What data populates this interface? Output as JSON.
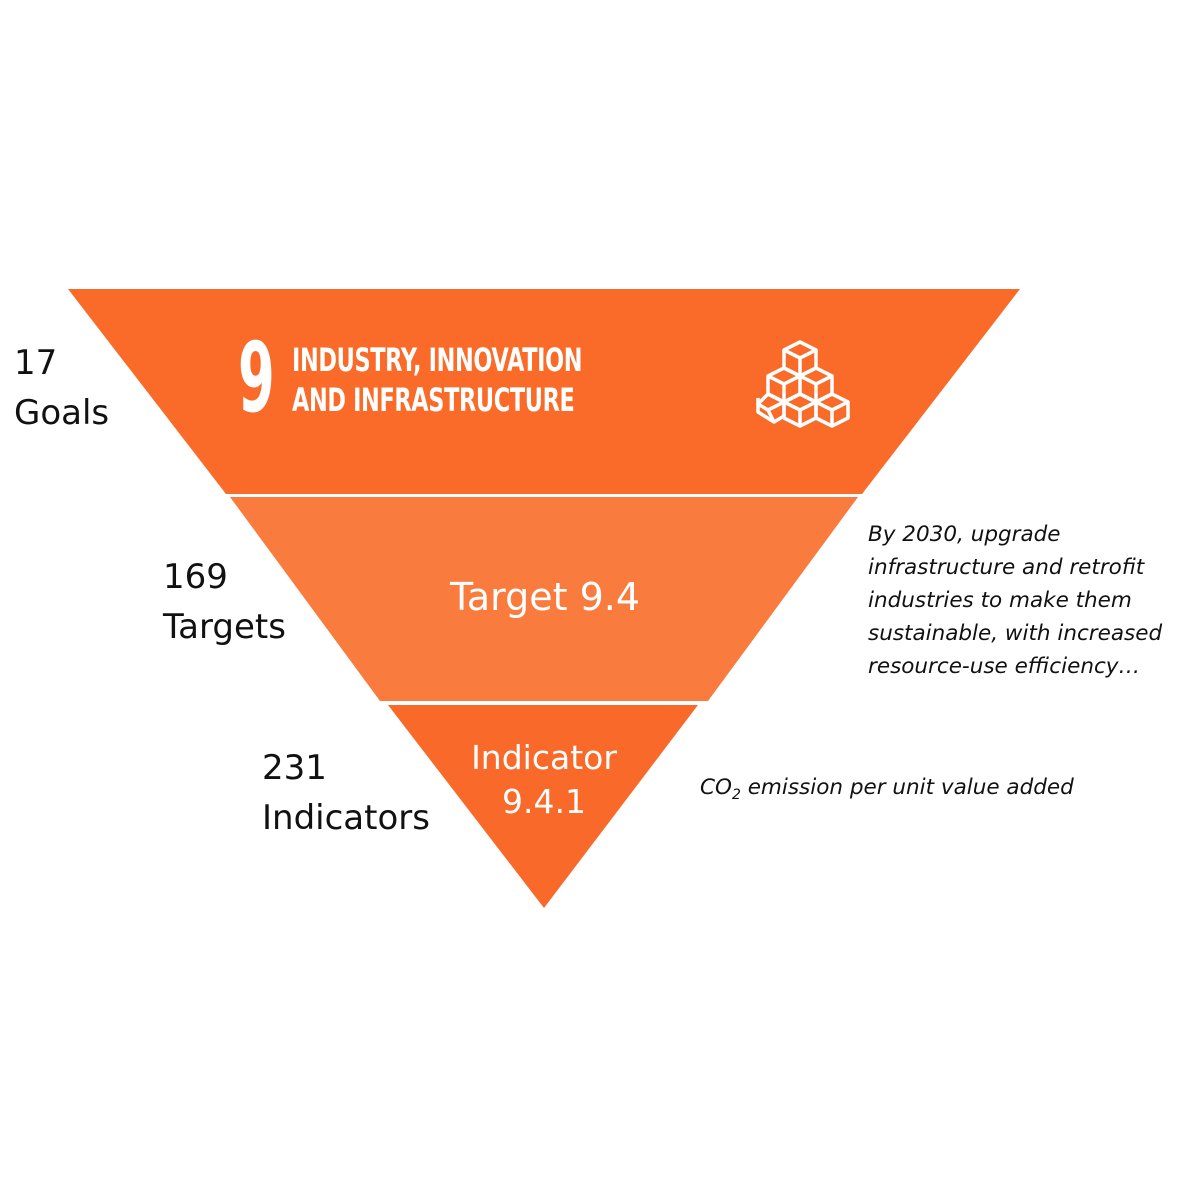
{
  "colors": {
    "goal_layer": "#FA6A28",
    "target_layer": "#F97B3D",
    "indicator_layer": "#F96A2A",
    "text_dark": "#111111",
    "text_light": "#FFFFFF"
  },
  "levels": {
    "goals": {
      "count": "17",
      "label": "Goals"
    },
    "targets": {
      "count": "169",
      "label": "Targets"
    },
    "indicators": {
      "count": "231",
      "label": "Indicators"
    }
  },
  "goal": {
    "number": "9",
    "title_line1": "INDUSTRY, INNOVATION",
    "title_line2": "AND INFRASTRUCTURE",
    "icon": "cubes-icon"
  },
  "target": {
    "label": "Target 9.4",
    "description": "By 2030, upgrade infrastructure and retrofit industries to make them sustainable, with increased resource-use efficiency…"
  },
  "indicator": {
    "label_line1": "Indicator",
    "label_line2": "9.4.1",
    "description_prefix": "CO",
    "description_subscript": "2",
    "description_suffix": " emission per unit value added"
  }
}
